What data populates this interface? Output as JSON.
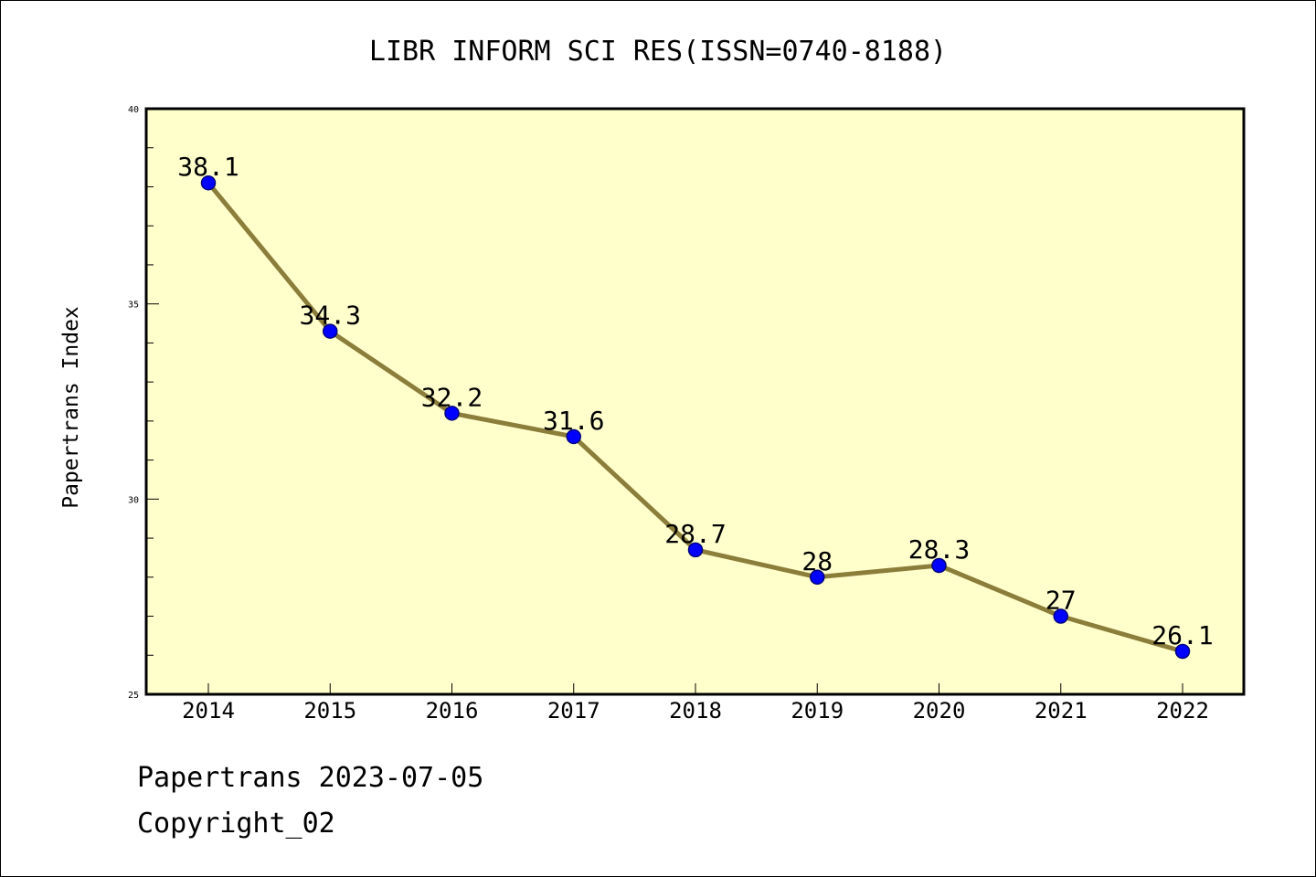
{
  "chart_data": {
    "type": "line",
    "title": "LIBR INFORM SCI RES(ISSN=0740-8188)",
    "xlabel": "",
    "ylabel": "Papertrans Index",
    "categories": [
      "2014",
      "2015",
      "2016",
      "2017",
      "2018",
      "2019",
      "2020",
      "2021",
      "2022"
    ],
    "series": [
      {
        "values": [
          38.1,
          34.3,
          32.2,
          31.6,
          28.7,
          28,
          28.3,
          27,
          26.1
        ],
        "labels": [
          "38.1",
          "34.3",
          "32.2",
          "31.6",
          "28.7",
          "28",
          "28.3",
          "27",
          "26.1"
        ]
      }
    ],
    "ylim": [
      25,
      40
    ],
    "yticks": [
      "25",
      "30",
      "35",
      "40"
    ],
    "grid": false,
    "colors": {
      "plot_background": "#ffffcc",
      "line": "#8b7d3a",
      "marker": "#0000ff",
      "marker_edge": "#000080",
      "axes": "#000000"
    }
  },
  "footer": {
    "line1": "Papertrans 2023-07-05",
    "line2": "Copyright_02"
  }
}
